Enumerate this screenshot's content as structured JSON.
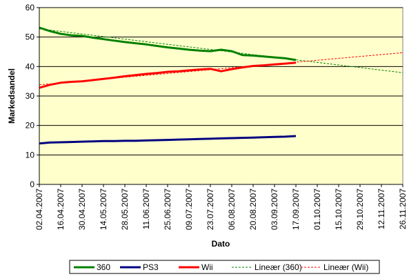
{
  "chart_data": {
    "type": "line",
    "title": "",
    "xlabel": "Dato",
    "ylabel": "Markedsandel",
    "ylim": [
      0,
      60
    ],
    "yticks": [
      0,
      10,
      20,
      30,
      40,
      50,
      60
    ],
    "xlim": [
      "02.04.2007",
      "26.11.2007"
    ],
    "xtick_labels": [
      "02.04.2007",
      "16.04.2007",
      "30.04.2007",
      "14.05.2007",
      "28.05.2007",
      "11.06.2007",
      "25.06.2007",
      "09.07.2007",
      "23.07.2007",
      "06.08.2007",
      "20.08.2007",
      "03.09.2007",
      "17.09.2007",
      "01.10.2007",
      "15.10.2007",
      "29.10.2007",
      "12.11.2007",
      "26.11.2007"
    ],
    "grid": "horizontal",
    "background": "#ffffcc",
    "legend_position": "bottom",
    "series": [
      {
        "name": "360",
        "color": "#008000",
        "style": "solid",
        "x": [
          "02.04.2007",
          "09.04.2007",
          "16.04.2007",
          "23.04.2007",
          "30.04.2007",
          "07.05.2007",
          "14.05.2007",
          "21.05.2007",
          "28.05.2007",
          "04.06.2007",
          "11.06.2007",
          "18.06.2007",
          "25.06.2007",
          "02.07.2007",
          "09.07.2007",
          "16.07.2007",
          "23.07.2007",
          "30.07.2007",
          "06.08.2007",
          "13.08.2007",
          "20.08.2007",
          "27.08.2007",
          "03.09.2007",
          "10.09.2007",
          "17.09.2007"
        ],
        "values": [
          53.2,
          52.0,
          51.1,
          50.6,
          50.4,
          49.8,
          49.3,
          48.8,
          48.3,
          47.9,
          47.5,
          47.0,
          46.5,
          46.1,
          45.7,
          45.4,
          45.2,
          45.7,
          45.2,
          43.9,
          43.7,
          43.4,
          43.1,
          42.8,
          42.2
        ]
      },
      {
        "name": "PS3",
        "color": "#000080",
        "style": "solid",
        "x": [
          "02.04.2007",
          "09.04.2007",
          "16.04.2007",
          "23.04.2007",
          "30.04.2007",
          "07.05.2007",
          "14.05.2007",
          "21.05.2007",
          "28.05.2007",
          "04.06.2007",
          "11.06.2007",
          "18.06.2007",
          "25.06.2007",
          "02.07.2007",
          "09.07.2007",
          "16.07.2007",
          "23.07.2007",
          "30.07.2007",
          "06.08.2007",
          "13.08.2007",
          "20.08.2007",
          "27.08.2007",
          "03.09.2007",
          "10.09.2007",
          "17.09.2007"
        ],
        "values": [
          13.9,
          14.2,
          14.3,
          14.4,
          14.5,
          14.6,
          14.7,
          14.7,
          14.8,
          14.8,
          14.9,
          15.0,
          15.1,
          15.2,
          15.3,
          15.4,
          15.5,
          15.6,
          15.7,
          15.8,
          15.9,
          16.0,
          16.1,
          16.2,
          16.4
        ]
      },
      {
        "name": "Wii",
        "color": "#ff0000",
        "style": "solid",
        "x": [
          "02.04.2007",
          "09.04.2007",
          "16.04.2007",
          "23.04.2007",
          "30.04.2007",
          "07.05.2007",
          "14.05.2007",
          "21.05.2007",
          "28.05.2007",
          "04.06.2007",
          "11.06.2007",
          "18.06.2007",
          "25.06.2007",
          "02.07.2007",
          "09.07.2007",
          "16.07.2007",
          "23.07.2007",
          "30.07.2007",
          "06.08.2007",
          "13.08.2007",
          "20.08.2007",
          "27.08.2007",
          "03.09.2007",
          "10.09.2007",
          "17.09.2007"
        ],
        "values": [
          32.8,
          33.8,
          34.5,
          34.8,
          35.0,
          35.4,
          35.8,
          36.2,
          36.7,
          37.1,
          37.5,
          37.8,
          38.2,
          38.4,
          38.7,
          39.0,
          39.2,
          38.4,
          39.1,
          39.7,
          40.2,
          40.4,
          40.7,
          41.0,
          41.3
        ]
      },
      {
        "name": "Lineær (360)",
        "color": "#008000",
        "style": "dashed",
        "x": [
          "02.04.2007",
          "26.11.2007"
        ],
        "values": [
          52.8,
          37.9
        ]
      },
      {
        "name": "Lineær (Wii)",
        "color": "#ff0000",
        "style": "dashed",
        "x": [
          "02.04.2007",
          "26.11.2007"
        ],
        "values": [
          33.8,
          44.7
        ]
      }
    ]
  }
}
